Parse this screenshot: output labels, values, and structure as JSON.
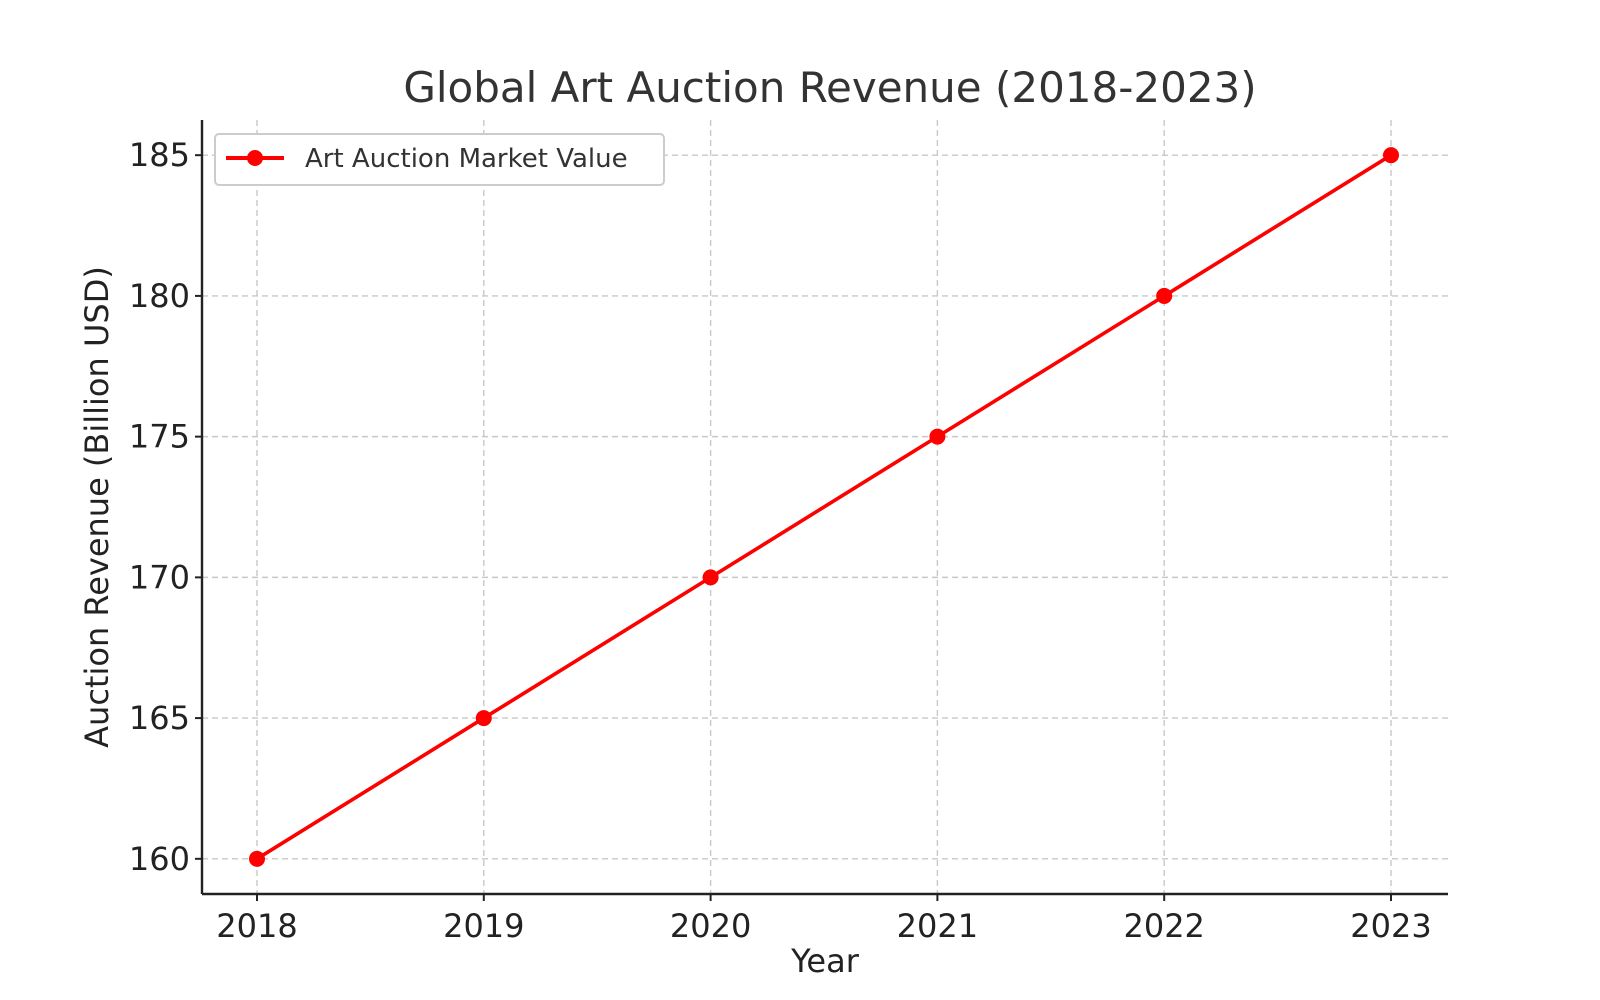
{
  "chart_data": {
    "type": "line",
    "title": "Global Art Auction Revenue (2018-2023)",
    "xlabel": "Year",
    "ylabel": "Auction Revenue (Billion USD)",
    "x": [
      "2018",
      "2019",
      "2020",
      "2021",
      "2022",
      "2023"
    ],
    "series": [
      {
        "name": "Art Auction Market Value",
        "values": [
          160,
          165,
          170,
          175,
          180,
          185
        ],
        "color": "#ff0000"
      }
    ],
    "ylim": [
      158.75,
      186.25
    ],
    "yticks": [
      160,
      165,
      170,
      175,
      180,
      185
    ],
    "grid": true,
    "legend_position": "top-left"
  }
}
